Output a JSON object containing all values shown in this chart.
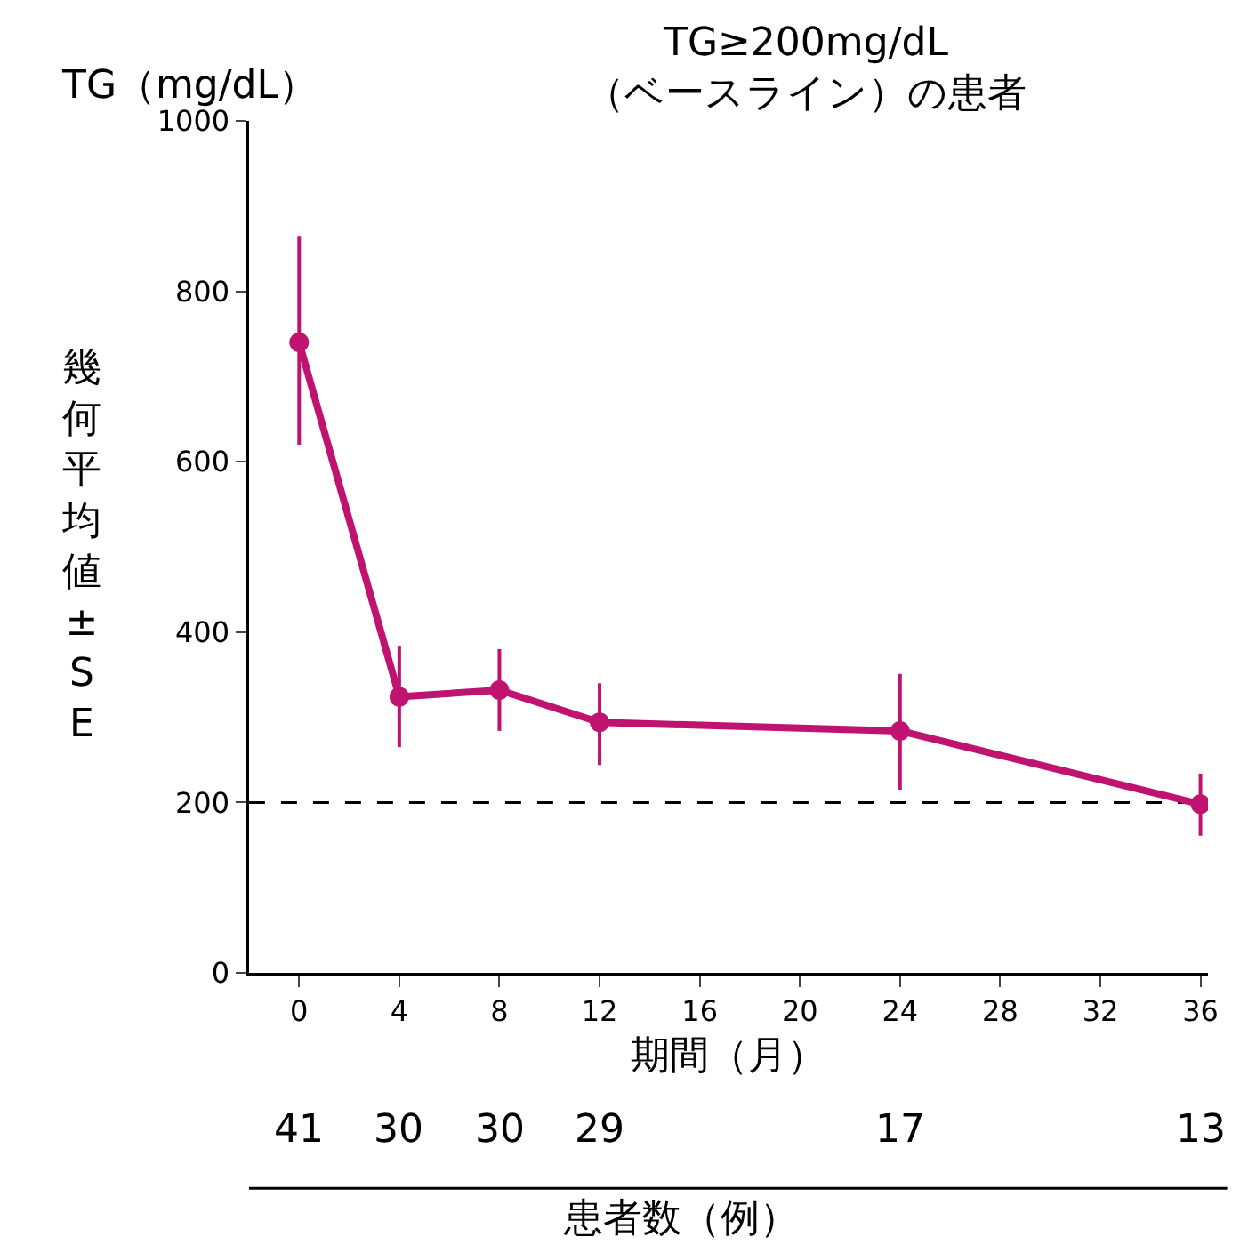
{
  "chart_data": {
    "type": "line",
    "title": "TG≥200mg/dL\n（ベースライン）の患者",
    "ylabel": "幾何平均値±SE",
    "xlabel": "期間（月）",
    "x": [
      0,
      4,
      8,
      12,
      24,
      36
    ],
    "series": [
      {
        "color": "#c0136f",
        "values": [
          740,
          324,
          332,
          294,
          284,
          198
        ],
        "errors": [
          [
            620,
            865
          ],
          [
            265,
            384
          ],
          [
            284,
            380
          ],
          [
            244,
            340
          ],
          [
            215,
            351
          ],
          [
            161,
            234
          ]
        ]
      }
    ],
    "xlim": [
      -2,
      36.3
    ],
    "xticks": [
      0,
      4,
      8,
      12,
      16,
      20,
      24,
      28,
      32,
      36
    ],
    "ylim": [
      0,
      1000
    ],
    "yticks": [
      0,
      200,
      400,
      600,
      800,
      1000
    ],
    "ref_lines": [
      {
        "axis": "y",
        "value": 200,
        "color": "#000000",
        "line_style": "dashed"
      }
    ],
    "annotations": [
      "TG（mg/dL）",
      "41",
      "30",
      "30",
      "29",
      "17",
      "13",
      "患者数（例）"
    ],
    "grid": false,
    "legend": false,
    "marker": "circle",
    "line_style": "solid"
  }
}
